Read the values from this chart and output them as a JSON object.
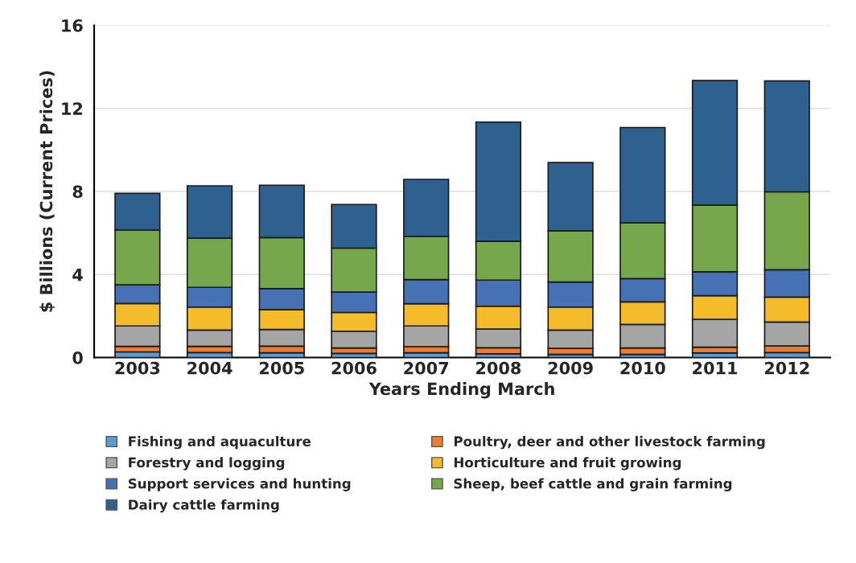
{
  "chart_data": {
    "type": "bar",
    "stacked": true,
    "xlabel": "Years Ending March",
    "ylabel": "$ Billions (Current Prices)",
    "categories": [
      "2003",
      "2004",
      "2005",
      "2006",
      "2007",
      "2008",
      "2009",
      "2010",
      "2011",
      "2012"
    ],
    "series": [
      {
        "name": "Fishing and aquaculture",
        "color": "#5b9bd5",
        "values": [
          0.27,
          0.24,
          0.23,
          0.2,
          0.23,
          0.18,
          0.15,
          0.15,
          0.22,
          0.24
        ]
      },
      {
        "name": "Poultry, deer and other livestock farming",
        "color": "#ed7d31",
        "values": [
          0.27,
          0.3,
          0.32,
          0.26,
          0.29,
          0.29,
          0.29,
          0.31,
          0.28,
          0.32
        ]
      },
      {
        "name": "Forestry and logging",
        "color": "#a5a5a5",
        "values": [
          0.98,
          0.78,
          0.8,
          0.81,
          1.0,
          0.9,
          0.88,
          1.13,
          1.34,
          1.15
        ]
      },
      {
        "name": "Horticulture and fruit growing",
        "color": "#f4bc2a",
        "values": [
          1.08,
          1.11,
          0.95,
          0.9,
          1.07,
          1.1,
          1.11,
          1.09,
          1.14,
          1.2
        ]
      },
      {
        "name": "Support services and hunting",
        "color": "#4671b5",
        "values": [
          0.9,
          0.95,
          1.02,
          0.98,
          1.16,
          1.26,
          1.21,
          1.12,
          1.15,
          1.32
        ]
      },
      {
        "name": "Sheep, beef cattle and grain farming",
        "color": "#77a74d",
        "values": [
          2.64,
          2.37,
          2.46,
          2.12,
          2.08,
          1.87,
          2.46,
          2.69,
          3.21,
          3.75
        ]
      },
      {
        "name": "Dairy cattle farming",
        "color": "#2f6190",
        "values": [
          1.77,
          2.52,
          2.52,
          2.1,
          2.75,
          5.74,
          3.29,
          4.59,
          6.0,
          5.34
        ]
      }
    ],
    "ylim": [
      0,
      16
    ],
    "yticks": [
      0,
      4,
      8,
      12,
      16
    ],
    "grid": "y",
    "legend": "bottom"
  }
}
